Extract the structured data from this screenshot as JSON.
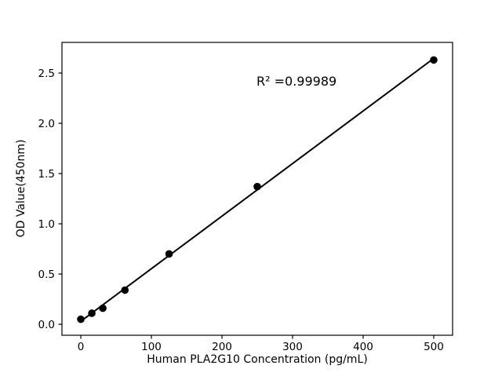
{
  "figure": {
    "background": "#ffffff"
  },
  "chart_data": {
    "type": "scatter",
    "title": "",
    "xlabel": "Human PLA2G10 Concentration (pg/mL)",
    "ylabel": "OD Value(450nm)",
    "annotation": "R² =0.99989",
    "x": [
      0,
      15.6,
      31.2,
      62.5,
      125,
      250,
      500
    ],
    "y": [
      0.05,
      0.11,
      0.16,
      0.34,
      0.7,
      1.37,
      2.63
    ],
    "series": [
      {
        "name": "standard-points",
        "style": "scatter",
        "color": "#000000"
      },
      {
        "name": "linear-fit",
        "style": "line",
        "color": "#000000"
      }
    ],
    "xticks": [
      0,
      100,
      200,
      300,
      400,
      500
    ],
    "xtick_labels": [
      "0",
      "100",
      "200",
      "300",
      "400",
      "500"
    ],
    "yticks": [
      0,
      0.5,
      1.0,
      1.5,
      2.0,
      2.5
    ],
    "ytick_labels": [
      "0.0",
      "0.5",
      "1.0",
      "1.5",
      "2.0",
      "2.5"
    ],
    "xlim": [
      -26.7,
      526.7
    ],
    "ylim": [
      -0.109,
      2.805
    ],
    "grid": false,
    "legend": null,
    "marker_color": "#000000",
    "line_color": "#000000"
  }
}
